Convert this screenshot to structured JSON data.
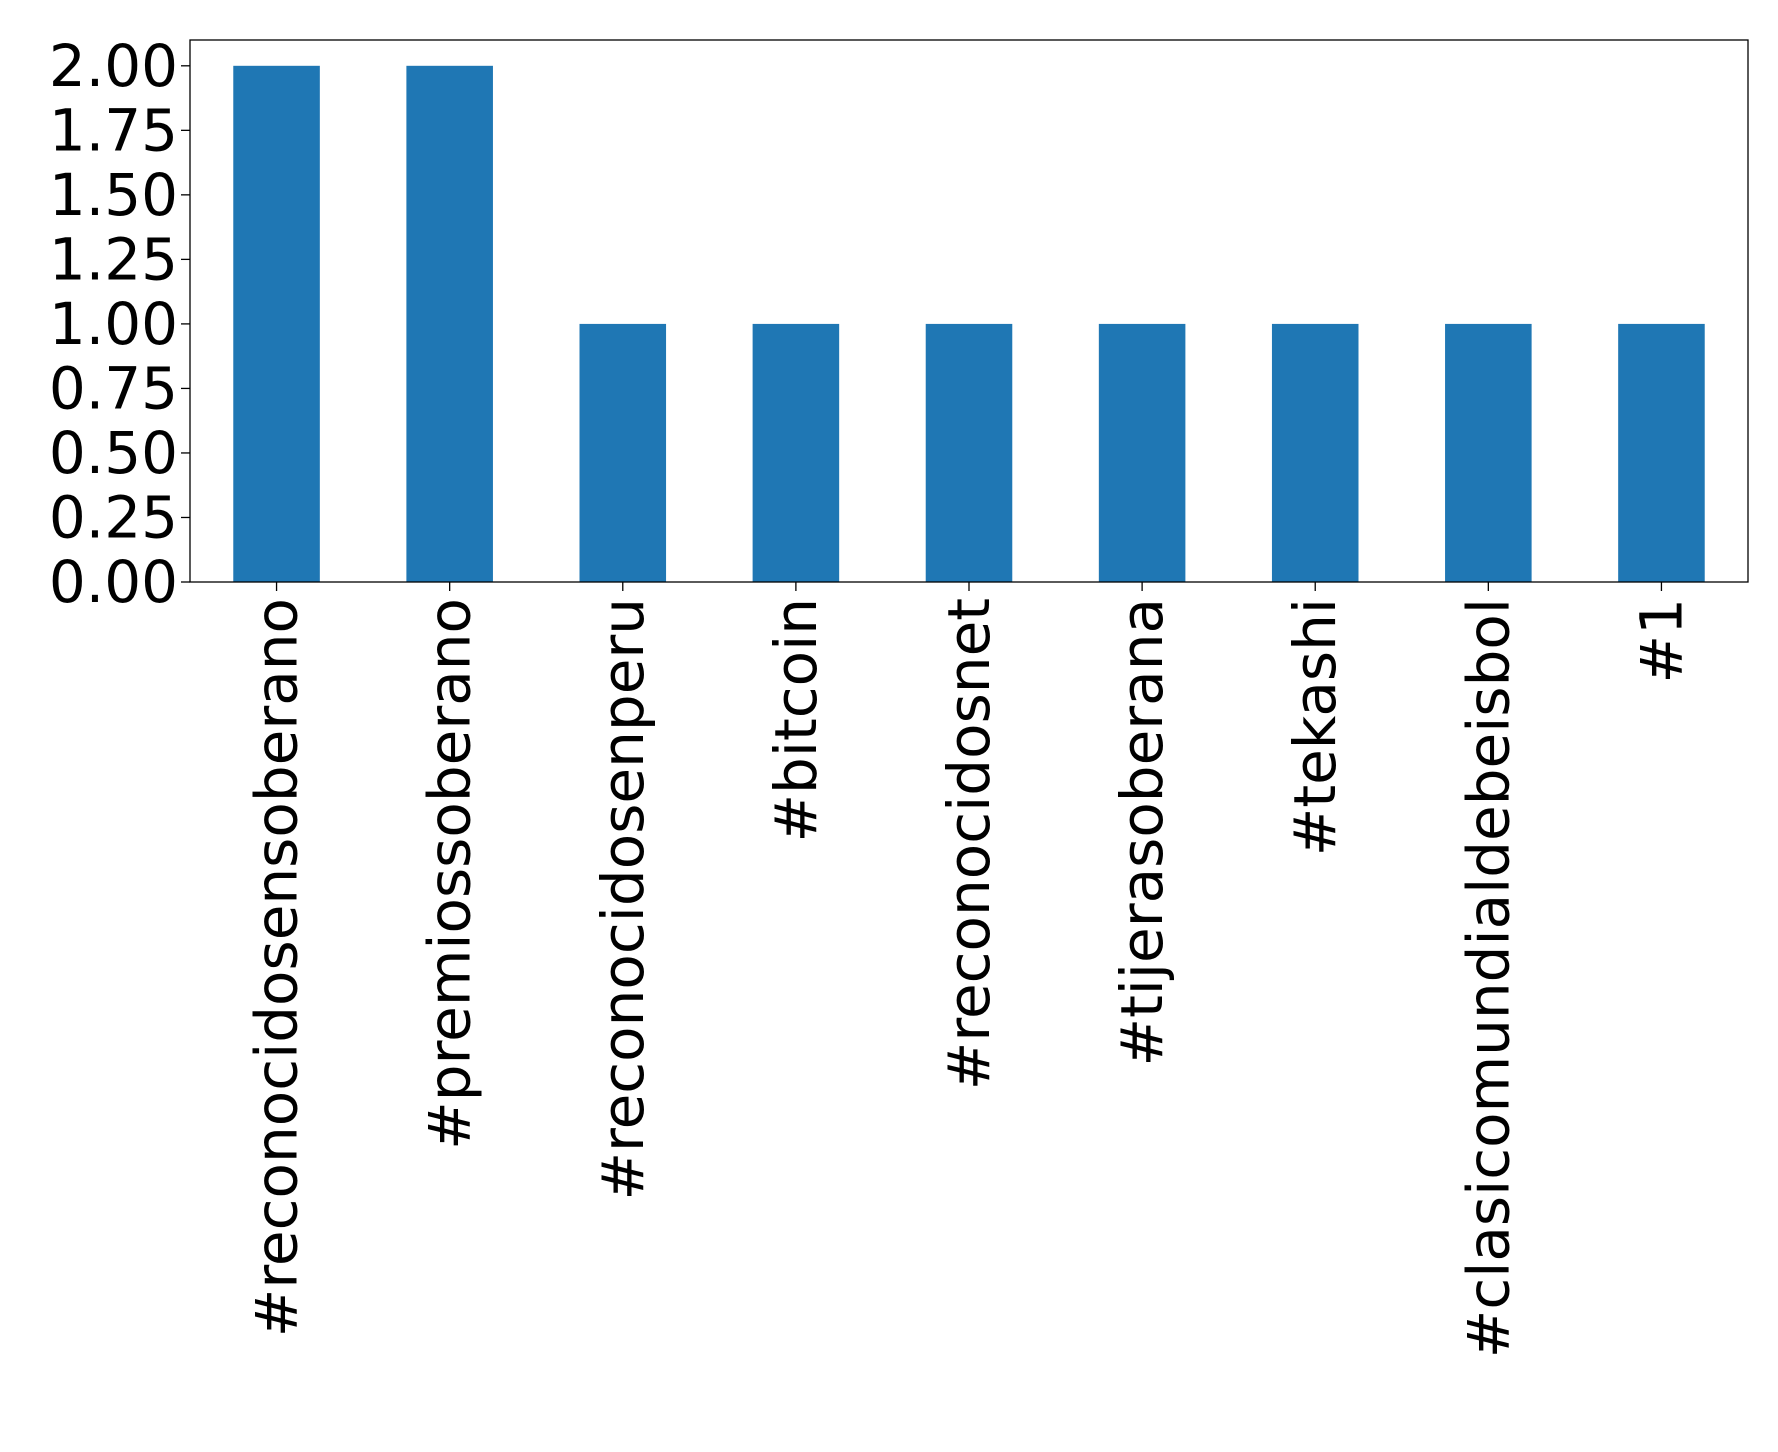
{
  "chart_data": {
    "type": "bar",
    "title": "",
    "xlabel": "",
    "ylabel": "",
    "categories": [
      "#reconocidosensoberano",
      "#premiossoberano",
      "#reconocidosenperu",
      "#bitcoin",
      "#reconocidosnet",
      "#tijerasoberana",
      "#tekashi",
      "#clasicomundialdebeisbol",
      "#1"
    ],
    "values": [
      2,
      2,
      1,
      1,
      1,
      1,
      1,
      1,
      1
    ],
    "ylim": [
      0,
      2.1
    ],
    "yticks": [
      "0.00",
      "0.25",
      "0.50",
      "0.75",
      "1.00",
      "1.25",
      "1.50",
      "1.75",
      "2.00"
    ],
    "grid": false,
    "legend": "none",
    "colors": {
      "bar": "#1f77b4",
      "axis": "#000000"
    }
  }
}
